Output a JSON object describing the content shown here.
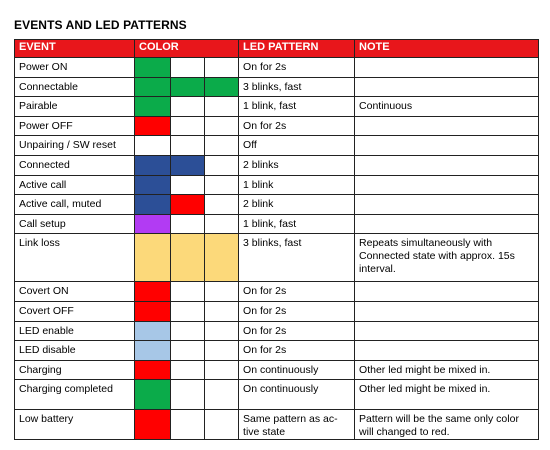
{
  "title": "EVENTS AND LED PATTERNS",
  "headers": {
    "event": "EVENT",
    "color": "COLOR",
    "pattern": "LED PATTERN",
    "note": "NOTE"
  },
  "colors": {
    "green": "#0bab4a",
    "red": "#ff0000",
    "blue": "#2c4f97",
    "purple": "#b23bf3",
    "yellow": "#fcd97a",
    "lightblue": "#a7c7e7",
    "none": "#ffffff",
    "header_bg": "#e8161b"
  },
  "rows": [
    {
      "event": "Power ON",
      "colors": [
        "green",
        "none",
        "none"
      ],
      "pattern": "On for 2s",
      "note": ""
    },
    {
      "event": "Connectable",
      "colors": [
        "green",
        "green",
        "green"
      ],
      "pattern": "3 blinks, fast",
      "note": ""
    },
    {
      "event": "Pairable",
      "colors": [
        "green",
        "none",
        "none"
      ],
      "pattern": "1 blink, fast",
      "note": "Continuous"
    },
    {
      "event": "Power OFF",
      "colors": [
        "red",
        "none",
        "none"
      ],
      "pattern": "On for 2s",
      "note": ""
    },
    {
      "event": "Unpairing / SW reset",
      "colors": [
        "none",
        "none",
        "none"
      ],
      "pattern": "Off",
      "note": ""
    },
    {
      "event": "Connected",
      "colors": [
        "blue",
        "blue",
        "none"
      ],
      "pattern": "2 blinks",
      "note": ""
    },
    {
      "event": "Active call",
      "colors": [
        "blue",
        "none",
        "none"
      ],
      "pattern": "1 blink",
      "note": ""
    },
    {
      "event": "Active call, muted",
      "colors": [
        "blue",
        "red",
        "none"
      ],
      "pattern": "2 blink",
      "note": ""
    },
    {
      "event": "Call setup",
      "colors": [
        "purple",
        "none",
        "none"
      ],
      "pattern": "1 blink, fast",
      "note": ""
    },
    {
      "event": "Link loss",
      "colors": [
        "yellow",
        "yellow",
        "yellow"
      ],
      "pattern": "3 blinks, fast",
      "note": "Repeats simultaneously with Connected state with approx. 15s interval."
    },
    {
      "event": "Covert ON",
      "colors": [
        "red",
        "none",
        "none"
      ],
      "pattern": "On for 2s",
      "note": ""
    },
    {
      "event": "Covert OFF",
      "colors": [
        "red",
        "none",
        "none"
      ],
      "pattern": "On for 2s",
      "note": ""
    },
    {
      "event": "LED enable",
      "colors": [
        "lightblue",
        "none",
        "none"
      ],
      "pattern": "On for 2s",
      "note": ""
    },
    {
      "event": "LED disable",
      "colors": [
        "lightblue",
        "none",
        "none"
      ],
      "pattern": "On for 2s",
      "note": ""
    },
    {
      "event": "Charging",
      "colors": [
        "red",
        "none",
        "none"
      ],
      "pattern": "On continuously",
      "note": "Other led might be mixed in."
    },
    {
      "event": "Charging completed",
      "colors": [
        "green",
        "none",
        "none"
      ],
      "pattern": "On continuously",
      "note": "Other led might be mixed in."
    },
    {
      "event": "Low battery",
      "colors": [
        "red",
        "none",
        "none"
      ],
      "pattern": "Same pattern as ac-tive state",
      "note": "Pattern will be the same only color will changed to red."
    }
  ]
}
